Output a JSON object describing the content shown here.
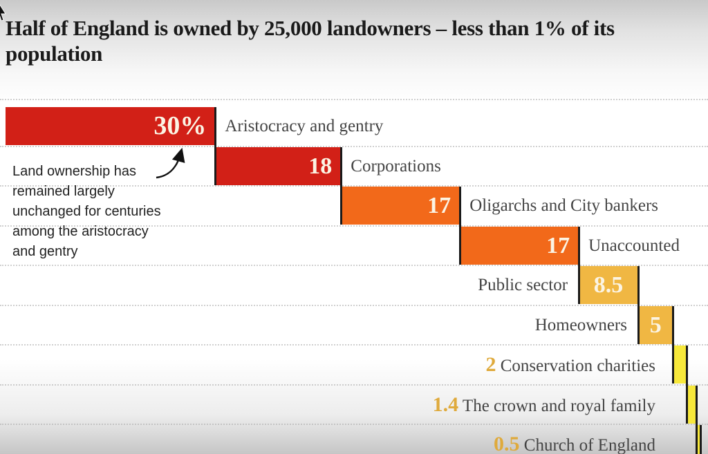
{
  "title": "Half of England is owned by 25,000 landowners – less than 1% of its population",
  "annotation": {
    "text": "Land ownership has\nremained largely\nunchanged for centuries\namong the aristocracy\nand gentry"
  },
  "colors": {
    "red": "#d22017",
    "orange": "#f2691a",
    "amber": "#f0b743",
    "yellow": "#f7e83b",
    "value_light": "#fbf4e4",
    "value_amber": "#dfaa3c",
    "label_gray": "#444444",
    "connector": "#1a1a1a",
    "title_text": "#1a1a1a"
  },
  "chart_data": {
    "type": "bar",
    "subtype": "cascading-waterfall",
    "title": "Half of England is owned by 25,000 landowners – less than 1% of its population",
    "xlabel": "",
    "ylabel": "",
    "unit": "% of England's land",
    "xlim": [
      0,
      99.4
    ],
    "grid": "dotted horizontal row separators",
    "legend_position": "none",
    "categories": [
      "Aristocracy and gentry",
      "Corporations",
      "Oligarchs and City bankers",
      "Unaccounted",
      "Public sector",
      "Homeowners",
      "Conservation charities",
      "The crown and royal family",
      "Church of England"
    ],
    "values": [
      30,
      18,
      17,
      17,
      8.5,
      5,
      2,
      1.4,
      0.5
    ],
    "value_labels": [
      "30%",
      "18",
      "17",
      "17",
      "8.5",
      "5",
      "2",
      "1.4",
      "0.5"
    ],
    "bar_colors": [
      "red",
      "red",
      "orange",
      "orange",
      "amber",
      "amber",
      "yellow",
      "yellow",
      "yellow"
    ],
    "label_layout": [
      "right-of-bar",
      "right-of-bar",
      "right-of-bar",
      "right-of-bar",
      "left-of-bar",
      "left-of-bar",
      "outside-left-with-value",
      "outside-left-with-value",
      "outside-left-with-value"
    ],
    "annotation": "Land ownership has remained largely unchanged for centuries among the aristocracy and gentry"
  }
}
